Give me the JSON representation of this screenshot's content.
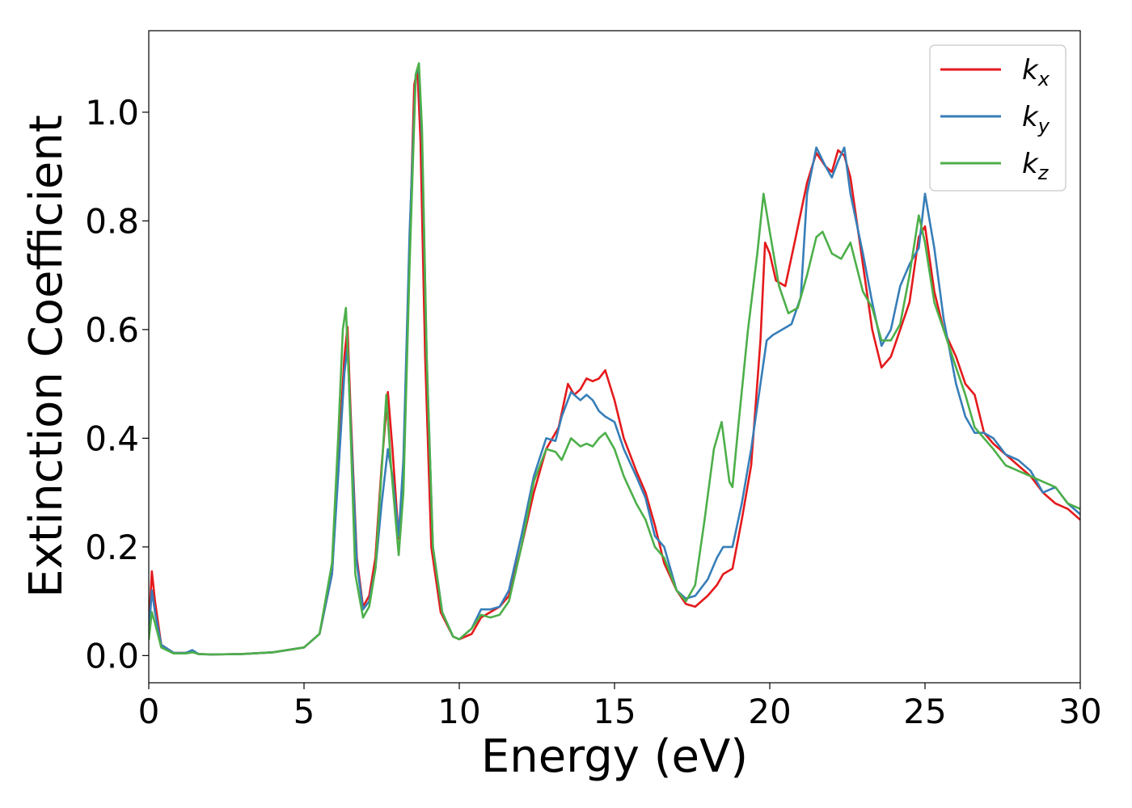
{
  "chart_data": {
    "type": "line",
    "title": "",
    "xlabel": "Energy (eV)",
    "ylabel": "Extinction Coefficient",
    "xlim": [
      0,
      30
    ],
    "ylim": [
      -0.05,
      1.15
    ],
    "xticks": [
      0,
      5,
      10,
      15,
      20,
      25,
      30
    ],
    "xtick_labels": [
      "0",
      "5",
      "10",
      "15",
      "20",
      "25",
      "30"
    ],
    "yticks": [
      0.0,
      0.2,
      0.4,
      0.6,
      0.8,
      1.0
    ],
    "ytick_labels": [
      "0.0",
      "0.2",
      "0.4",
      "0.6",
      "0.8",
      "1.0"
    ],
    "grid": false,
    "legend_position": "top-right",
    "series": [
      {
        "name": "k_x",
        "label_main": "k",
        "label_sub": "x",
        "color": "#e41a1c",
        "points": [
          [
            0,
            0.05
          ],
          [
            0.1,
            0.155
          ],
          [
            0.2,
            0.1
          ],
          [
            0.4,
            0.02
          ],
          [
            0.8,
            0.005
          ],
          [
            1.2,
            0.005
          ],
          [
            1.4,
            0.008
          ],
          [
            1.6,
            0.003
          ],
          [
            2,
            0.002
          ],
          [
            3,
            0.003
          ],
          [
            4,
            0.006
          ],
          [
            5,
            0.015
          ],
          [
            5.5,
            0.04
          ],
          [
            5.9,
            0.15
          ],
          [
            6.1,
            0.35
          ],
          [
            6.3,
            0.55
          ],
          [
            6.4,
            0.605
          ],
          [
            6.5,
            0.45
          ],
          [
            6.7,
            0.18
          ],
          [
            6.9,
            0.09
          ],
          [
            7.1,
            0.11
          ],
          [
            7.3,
            0.18
          ],
          [
            7.5,
            0.35
          ],
          [
            7.7,
            0.485
          ],
          [
            7.85,
            0.38
          ],
          [
            8.05,
            0.215
          ],
          [
            8.2,
            0.35
          ],
          [
            8.4,
            0.75
          ],
          [
            8.55,
            1.05
          ],
          [
            8.65,
            1.08
          ],
          [
            8.75,
            0.95
          ],
          [
            8.9,
            0.55
          ],
          [
            9.1,
            0.2
          ],
          [
            9.4,
            0.08
          ],
          [
            9.8,
            0.035
          ],
          [
            10,
            0.03
          ],
          [
            10.4,
            0.04
          ],
          [
            10.7,
            0.07
          ],
          [
            11,
            0.08
          ],
          [
            11.3,
            0.09
          ],
          [
            11.6,
            0.11
          ],
          [
            12,
            0.2
          ],
          [
            12.4,
            0.3
          ],
          [
            12.8,
            0.38
          ],
          [
            13.2,
            0.42
          ],
          [
            13.5,
            0.5
          ],
          [
            13.7,
            0.48
          ],
          [
            13.9,
            0.49
          ],
          [
            14.1,
            0.51
          ],
          [
            14.3,
            0.505
          ],
          [
            14.5,
            0.51
          ],
          [
            14.7,
            0.525
          ],
          [
            15,
            0.47
          ],
          [
            15.3,
            0.4
          ],
          [
            15.7,
            0.34
          ],
          [
            16,
            0.3
          ],
          [
            16.3,
            0.24
          ],
          [
            16.6,
            0.17
          ],
          [
            17,
            0.12
          ],
          [
            17.3,
            0.095
          ],
          [
            17.6,
            0.09
          ],
          [
            18,
            0.11
          ],
          [
            18.3,
            0.13
          ],
          [
            18.5,
            0.15
          ],
          [
            18.8,
            0.16
          ],
          [
            19.1,
            0.25
          ],
          [
            19.4,
            0.35
          ],
          [
            19.7,
            0.58
          ],
          [
            19.85,
            0.76
          ],
          [
            20,
            0.74
          ],
          [
            20.2,
            0.69
          ],
          [
            20.5,
            0.68
          ],
          [
            20.8,
            0.76
          ],
          [
            21.2,
            0.87
          ],
          [
            21.5,
            0.925
          ],
          [
            21.8,
            0.9
          ],
          [
            22,
            0.89
          ],
          [
            22.2,
            0.93
          ],
          [
            22.4,
            0.92
          ],
          [
            22.6,
            0.88
          ],
          [
            23,
            0.72
          ],
          [
            23.3,
            0.6
          ],
          [
            23.6,
            0.53
          ],
          [
            23.9,
            0.55
          ],
          [
            24.2,
            0.6
          ],
          [
            24.5,
            0.65
          ],
          [
            24.8,
            0.77
          ],
          [
            25,
            0.79
          ],
          [
            25.3,
            0.67
          ],
          [
            25.6,
            0.6
          ],
          [
            26,
            0.55
          ],
          [
            26.3,
            0.5
          ],
          [
            26.6,
            0.48
          ],
          [
            26.9,
            0.41
          ],
          [
            27.2,
            0.39
          ],
          [
            27.6,
            0.37
          ],
          [
            28,
            0.35
          ],
          [
            28.4,
            0.33
          ],
          [
            28.8,
            0.3
          ],
          [
            29.2,
            0.28
          ],
          [
            29.6,
            0.27
          ],
          [
            30,
            0.25
          ]
        ]
      },
      {
        "name": "k_y",
        "label_main": "k",
        "label_sub": "y",
        "color": "#377eb8",
        "points": [
          [
            0,
            0.04
          ],
          [
            0.1,
            0.12
          ],
          [
            0.2,
            0.08
          ],
          [
            0.4,
            0.02
          ],
          [
            0.8,
            0.005
          ],
          [
            1.2,
            0.005
          ],
          [
            1.4,
            0.01
          ],
          [
            1.6,
            0.003
          ],
          [
            2,
            0.002
          ],
          [
            3,
            0.003
          ],
          [
            4,
            0.006
          ],
          [
            5,
            0.015
          ],
          [
            5.5,
            0.04
          ],
          [
            5.9,
            0.15
          ],
          [
            6.1,
            0.33
          ],
          [
            6.3,
            0.52
          ],
          [
            6.4,
            0.57
          ],
          [
            6.5,
            0.43
          ],
          [
            6.7,
            0.17
          ],
          [
            6.9,
            0.085
          ],
          [
            7.1,
            0.1
          ],
          [
            7.3,
            0.16
          ],
          [
            7.5,
            0.28
          ],
          [
            7.7,
            0.38
          ],
          [
            7.85,
            0.33
          ],
          [
            8.05,
            0.22
          ],
          [
            8.2,
            0.36
          ],
          [
            8.4,
            0.78
          ],
          [
            8.6,
            1.07
          ],
          [
            8.7,
            1.08
          ],
          [
            8.8,
            0.95
          ],
          [
            8.95,
            0.55
          ],
          [
            9.15,
            0.2
          ],
          [
            9.45,
            0.08
          ],
          [
            9.8,
            0.035
          ],
          [
            10,
            0.03
          ],
          [
            10.4,
            0.05
          ],
          [
            10.7,
            0.085
          ],
          [
            11,
            0.085
          ],
          [
            11.3,
            0.09
          ],
          [
            11.6,
            0.12
          ],
          [
            12,
            0.22
          ],
          [
            12.4,
            0.33
          ],
          [
            12.8,
            0.4
          ],
          [
            13.1,
            0.395
          ],
          [
            13.3,
            0.44
          ],
          [
            13.6,
            0.485
          ],
          [
            13.9,
            0.47
          ],
          [
            14.1,
            0.48
          ],
          [
            14.3,
            0.47
          ],
          [
            14.5,
            0.45
          ],
          [
            14.7,
            0.44
          ],
          [
            15,
            0.43
          ],
          [
            15.3,
            0.38
          ],
          [
            15.7,
            0.33
          ],
          [
            16,
            0.29
          ],
          [
            16.3,
            0.22
          ],
          [
            16.6,
            0.2
          ],
          [
            17,
            0.12
          ],
          [
            17.3,
            0.105
          ],
          [
            17.6,
            0.11
          ],
          [
            18,
            0.14
          ],
          [
            18.3,
            0.18
          ],
          [
            18.5,
            0.2
          ],
          [
            18.8,
            0.2
          ],
          [
            19.1,
            0.28
          ],
          [
            19.4,
            0.38
          ],
          [
            19.7,
            0.5
          ],
          [
            19.9,
            0.58
          ],
          [
            20.1,
            0.59
          ],
          [
            20.4,
            0.6
          ],
          [
            20.7,
            0.61
          ],
          [
            21,
            0.66
          ],
          [
            21.2,
            0.85
          ],
          [
            21.5,
            0.935
          ],
          [
            21.8,
            0.9
          ],
          [
            22,
            0.88
          ],
          [
            22.2,
            0.91
          ],
          [
            22.4,
            0.935
          ],
          [
            22.6,
            0.85
          ],
          [
            23,
            0.74
          ],
          [
            23.3,
            0.65
          ],
          [
            23.6,
            0.57
          ],
          [
            23.9,
            0.6
          ],
          [
            24.2,
            0.68
          ],
          [
            24.5,
            0.72
          ],
          [
            24.8,
            0.75
          ],
          [
            25,
            0.85
          ],
          [
            25.3,
            0.75
          ],
          [
            25.6,
            0.62
          ],
          [
            26,
            0.5
          ],
          [
            26.3,
            0.44
          ],
          [
            26.6,
            0.41
          ],
          [
            26.9,
            0.41
          ],
          [
            27.2,
            0.4
          ],
          [
            27.6,
            0.37
          ],
          [
            28,
            0.36
          ],
          [
            28.4,
            0.34
          ],
          [
            28.8,
            0.3
          ],
          [
            29.2,
            0.31
          ],
          [
            29.6,
            0.28
          ],
          [
            30,
            0.26
          ]
        ]
      },
      {
        "name": "k_z",
        "label_main": "k",
        "label_sub": "z",
        "color": "#4daf4a",
        "points": [
          [
            0,
            0.03
          ],
          [
            0.1,
            0.08
          ],
          [
            0.2,
            0.06
          ],
          [
            0.4,
            0.015
          ],
          [
            0.8,
            0.004
          ],
          [
            1.2,
            0.004
          ],
          [
            1.4,
            0.006
          ],
          [
            1.6,
            0.003
          ],
          [
            2,
            0.002
          ],
          [
            3,
            0.003
          ],
          [
            4,
            0.006
          ],
          [
            5,
            0.015
          ],
          [
            5.5,
            0.04
          ],
          [
            5.9,
            0.17
          ],
          [
            6.1,
            0.4
          ],
          [
            6.25,
            0.6
          ],
          [
            6.35,
            0.64
          ],
          [
            6.45,
            0.5
          ],
          [
            6.65,
            0.15
          ],
          [
            6.9,
            0.07
          ],
          [
            7.1,
            0.09
          ],
          [
            7.3,
            0.16
          ],
          [
            7.5,
            0.34
          ],
          [
            7.65,
            0.48
          ],
          [
            7.8,
            0.35
          ],
          [
            8.05,
            0.185
          ],
          [
            8.2,
            0.3
          ],
          [
            8.4,
            0.72
          ],
          [
            8.6,
            1.07
          ],
          [
            8.7,
            1.09
          ],
          [
            8.8,
            0.97
          ],
          [
            8.95,
            0.55
          ],
          [
            9.15,
            0.2
          ],
          [
            9.45,
            0.08
          ],
          [
            9.8,
            0.035
          ],
          [
            10,
            0.03
          ],
          [
            10.4,
            0.05
          ],
          [
            10.7,
            0.075
          ],
          [
            11,
            0.07
          ],
          [
            11.3,
            0.075
          ],
          [
            11.6,
            0.1
          ],
          [
            12,
            0.2
          ],
          [
            12.4,
            0.32
          ],
          [
            12.8,
            0.38
          ],
          [
            13.1,
            0.375
          ],
          [
            13.3,
            0.36
          ],
          [
            13.6,
            0.4
          ],
          [
            13.9,
            0.385
          ],
          [
            14.1,
            0.39
          ],
          [
            14.3,
            0.385
          ],
          [
            14.5,
            0.4
          ],
          [
            14.7,
            0.41
          ],
          [
            15,
            0.38
          ],
          [
            15.3,
            0.33
          ],
          [
            15.7,
            0.28
          ],
          [
            16,
            0.25
          ],
          [
            16.3,
            0.2
          ],
          [
            16.6,
            0.18
          ],
          [
            17,
            0.12
          ],
          [
            17.3,
            0.1
          ],
          [
            17.6,
            0.13
          ],
          [
            17.9,
            0.25
          ],
          [
            18.2,
            0.38
          ],
          [
            18.45,
            0.43
          ],
          [
            18.7,
            0.32
          ],
          [
            18.8,
            0.31
          ],
          [
            19,
            0.43
          ],
          [
            19.3,
            0.6
          ],
          [
            19.6,
            0.74
          ],
          [
            19.8,
            0.85
          ],
          [
            20,
            0.78
          ],
          [
            20.3,
            0.68
          ],
          [
            20.6,
            0.63
          ],
          [
            20.9,
            0.64
          ],
          [
            21.2,
            0.7
          ],
          [
            21.5,
            0.77
          ],
          [
            21.7,
            0.78
          ],
          [
            22,
            0.74
          ],
          [
            22.3,
            0.73
          ],
          [
            22.6,
            0.76
          ],
          [
            23,
            0.67
          ],
          [
            23.3,
            0.64
          ],
          [
            23.6,
            0.58
          ],
          [
            23.9,
            0.58
          ],
          [
            24.2,
            0.61
          ],
          [
            24.5,
            0.7
          ],
          [
            24.8,
            0.81
          ],
          [
            25,
            0.76
          ],
          [
            25.3,
            0.65
          ],
          [
            25.6,
            0.6
          ],
          [
            26,
            0.53
          ],
          [
            26.3,
            0.48
          ],
          [
            26.6,
            0.42
          ],
          [
            26.9,
            0.4
          ],
          [
            27.2,
            0.38
          ],
          [
            27.6,
            0.35
          ],
          [
            28,
            0.34
          ],
          [
            28.4,
            0.33
          ],
          [
            28.8,
            0.32
          ],
          [
            29.2,
            0.31
          ],
          [
            29.6,
            0.28
          ],
          [
            30,
            0.27
          ]
        ]
      }
    ]
  }
}
